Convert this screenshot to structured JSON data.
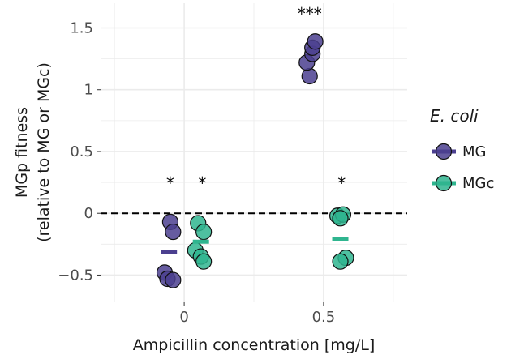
{
  "chart_data": {
    "type": "scatter",
    "xlabel": "Ampicillin concentration [mg/L]",
    "ylabel_line1": "MGp fitness",
    "ylabel_line2": "(relative to MG or MGc)",
    "ylim": [
      -0.72,
      1.7
    ],
    "xlim": [
      -0.3,
      0.8
    ],
    "x_ticks": [
      {
        "value": 0,
        "label": "0"
      },
      {
        "value": 0.5,
        "label": "0.5"
      }
    ],
    "y_ticks": [
      {
        "value": -0.5,
        "label": "−0.5"
      },
      {
        "value": 0,
        "label": "0"
      },
      {
        "value": 0.5,
        "label": "0.5"
      },
      {
        "value": 1,
        "label": "1"
      },
      {
        "value": 1.5,
        "label": "1.5"
      }
    ],
    "reference_line_y": 0,
    "legend": {
      "title": "E. coli",
      "entries": [
        {
          "name": "MG",
          "color": "#4b3f8f"
        },
        {
          "name": "MGc",
          "color": "#2fb58f"
        }
      ]
    },
    "series": [
      {
        "name": "MG",
        "color": "#4b3f8f",
        "points": [
          {
            "x": -0.05,
            "y": -0.07
          },
          {
            "x": -0.04,
            "y": -0.15
          },
          {
            "x": -0.07,
            "y": -0.48
          },
          {
            "x": -0.06,
            "y": -0.53
          },
          {
            "x": -0.04,
            "y": -0.54
          },
          {
            "x": 0.45,
            "y": 1.11
          },
          {
            "x": 0.44,
            "y": 1.22
          },
          {
            "x": 0.46,
            "y": 1.29
          },
          {
            "x": 0.46,
            "y": 1.34
          },
          {
            "x": 0.47,
            "y": 1.39
          }
        ],
        "means": [
          {
            "x": -0.055,
            "y": -0.31
          }
        ]
      },
      {
        "name": "MGc",
        "color": "#2fb58f",
        "points": [
          {
            "x": 0.05,
            "y": -0.08
          },
          {
            "x": 0.07,
            "y": -0.15
          },
          {
            "x": 0.04,
            "y": -0.3
          },
          {
            "x": 0.06,
            "y": -0.35
          },
          {
            "x": 0.07,
            "y": -0.39
          },
          {
            "x": 0.55,
            "y": -0.02
          },
          {
            "x": 0.57,
            "y": -0.01
          },
          {
            "x": 0.56,
            "y": -0.04
          },
          {
            "x": 0.58,
            "y": -0.36
          },
          {
            "x": 0.56,
            "y": -0.39
          }
        ],
        "means": [
          {
            "x": 0.06,
            "y": -0.23
          },
          {
            "x": 0.56,
            "y": -0.21
          }
        ]
      }
    ],
    "annotations": [
      {
        "text": "*",
        "x": -0.05,
        "y": 0.25
      },
      {
        "text": "*",
        "x": 0.065,
        "y": 0.25
      },
      {
        "text": "***",
        "x": 0.45,
        "y": 1.62
      },
      {
        "text": "*",
        "x": 0.565,
        "y": 0.25
      }
    ]
  }
}
